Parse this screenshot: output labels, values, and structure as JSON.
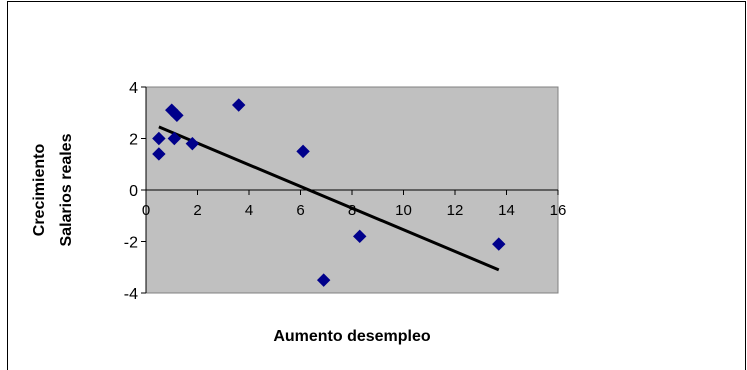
{
  "chart_data": {
    "type": "scatter",
    "title": "",
    "xlabel": "Aumento desempleo",
    "ylabel_lines": [
      "Crecimiento",
      "Salarios reales"
    ],
    "xlim": [
      0,
      16
    ],
    "ylim": [
      -4,
      4
    ],
    "xticks": [
      0,
      2,
      4,
      6,
      8,
      10,
      12,
      14,
      16
    ],
    "yticks": [
      -4,
      -2,
      0,
      2,
      4
    ],
    "grid": false,
    "legend": "none",
    "plot_background": "#c0c0c0",
    "marker_color": "#00008b",
    "trendline_color": "#000000",
    "points": [
      {
        "x": 0.5,
        "y": 2.0
      },
      {
        "x": 0.5,
        "y": 1.4
      },
      {
        "x": 1.0,
        "y": 3.1
      },
      {
        "x": 1.1,
        "y": 2.0
      },
      {
        "x": 1.2,
        "y": 2.9
      },
      {
        "x": 1.8,
        "y": 1.8
      },
      {
        "x": 3.6,
        "y": 3.3
      },
      {
        "x": 6.1,
        "y": 1.5
      },
      {
        "x": 6.9,
        "y": -3.5
      },
      {
        "x": 8.3,
        "y": -1.8
      },
      {
        "x": 13.7,
        "y": -2.1
      }
    ],
    "trendline": {
      "x": [
        0.5,
        13.7
      ],
      "y": [
        2.45,
        -3.1
      ]
    }
  }
}
